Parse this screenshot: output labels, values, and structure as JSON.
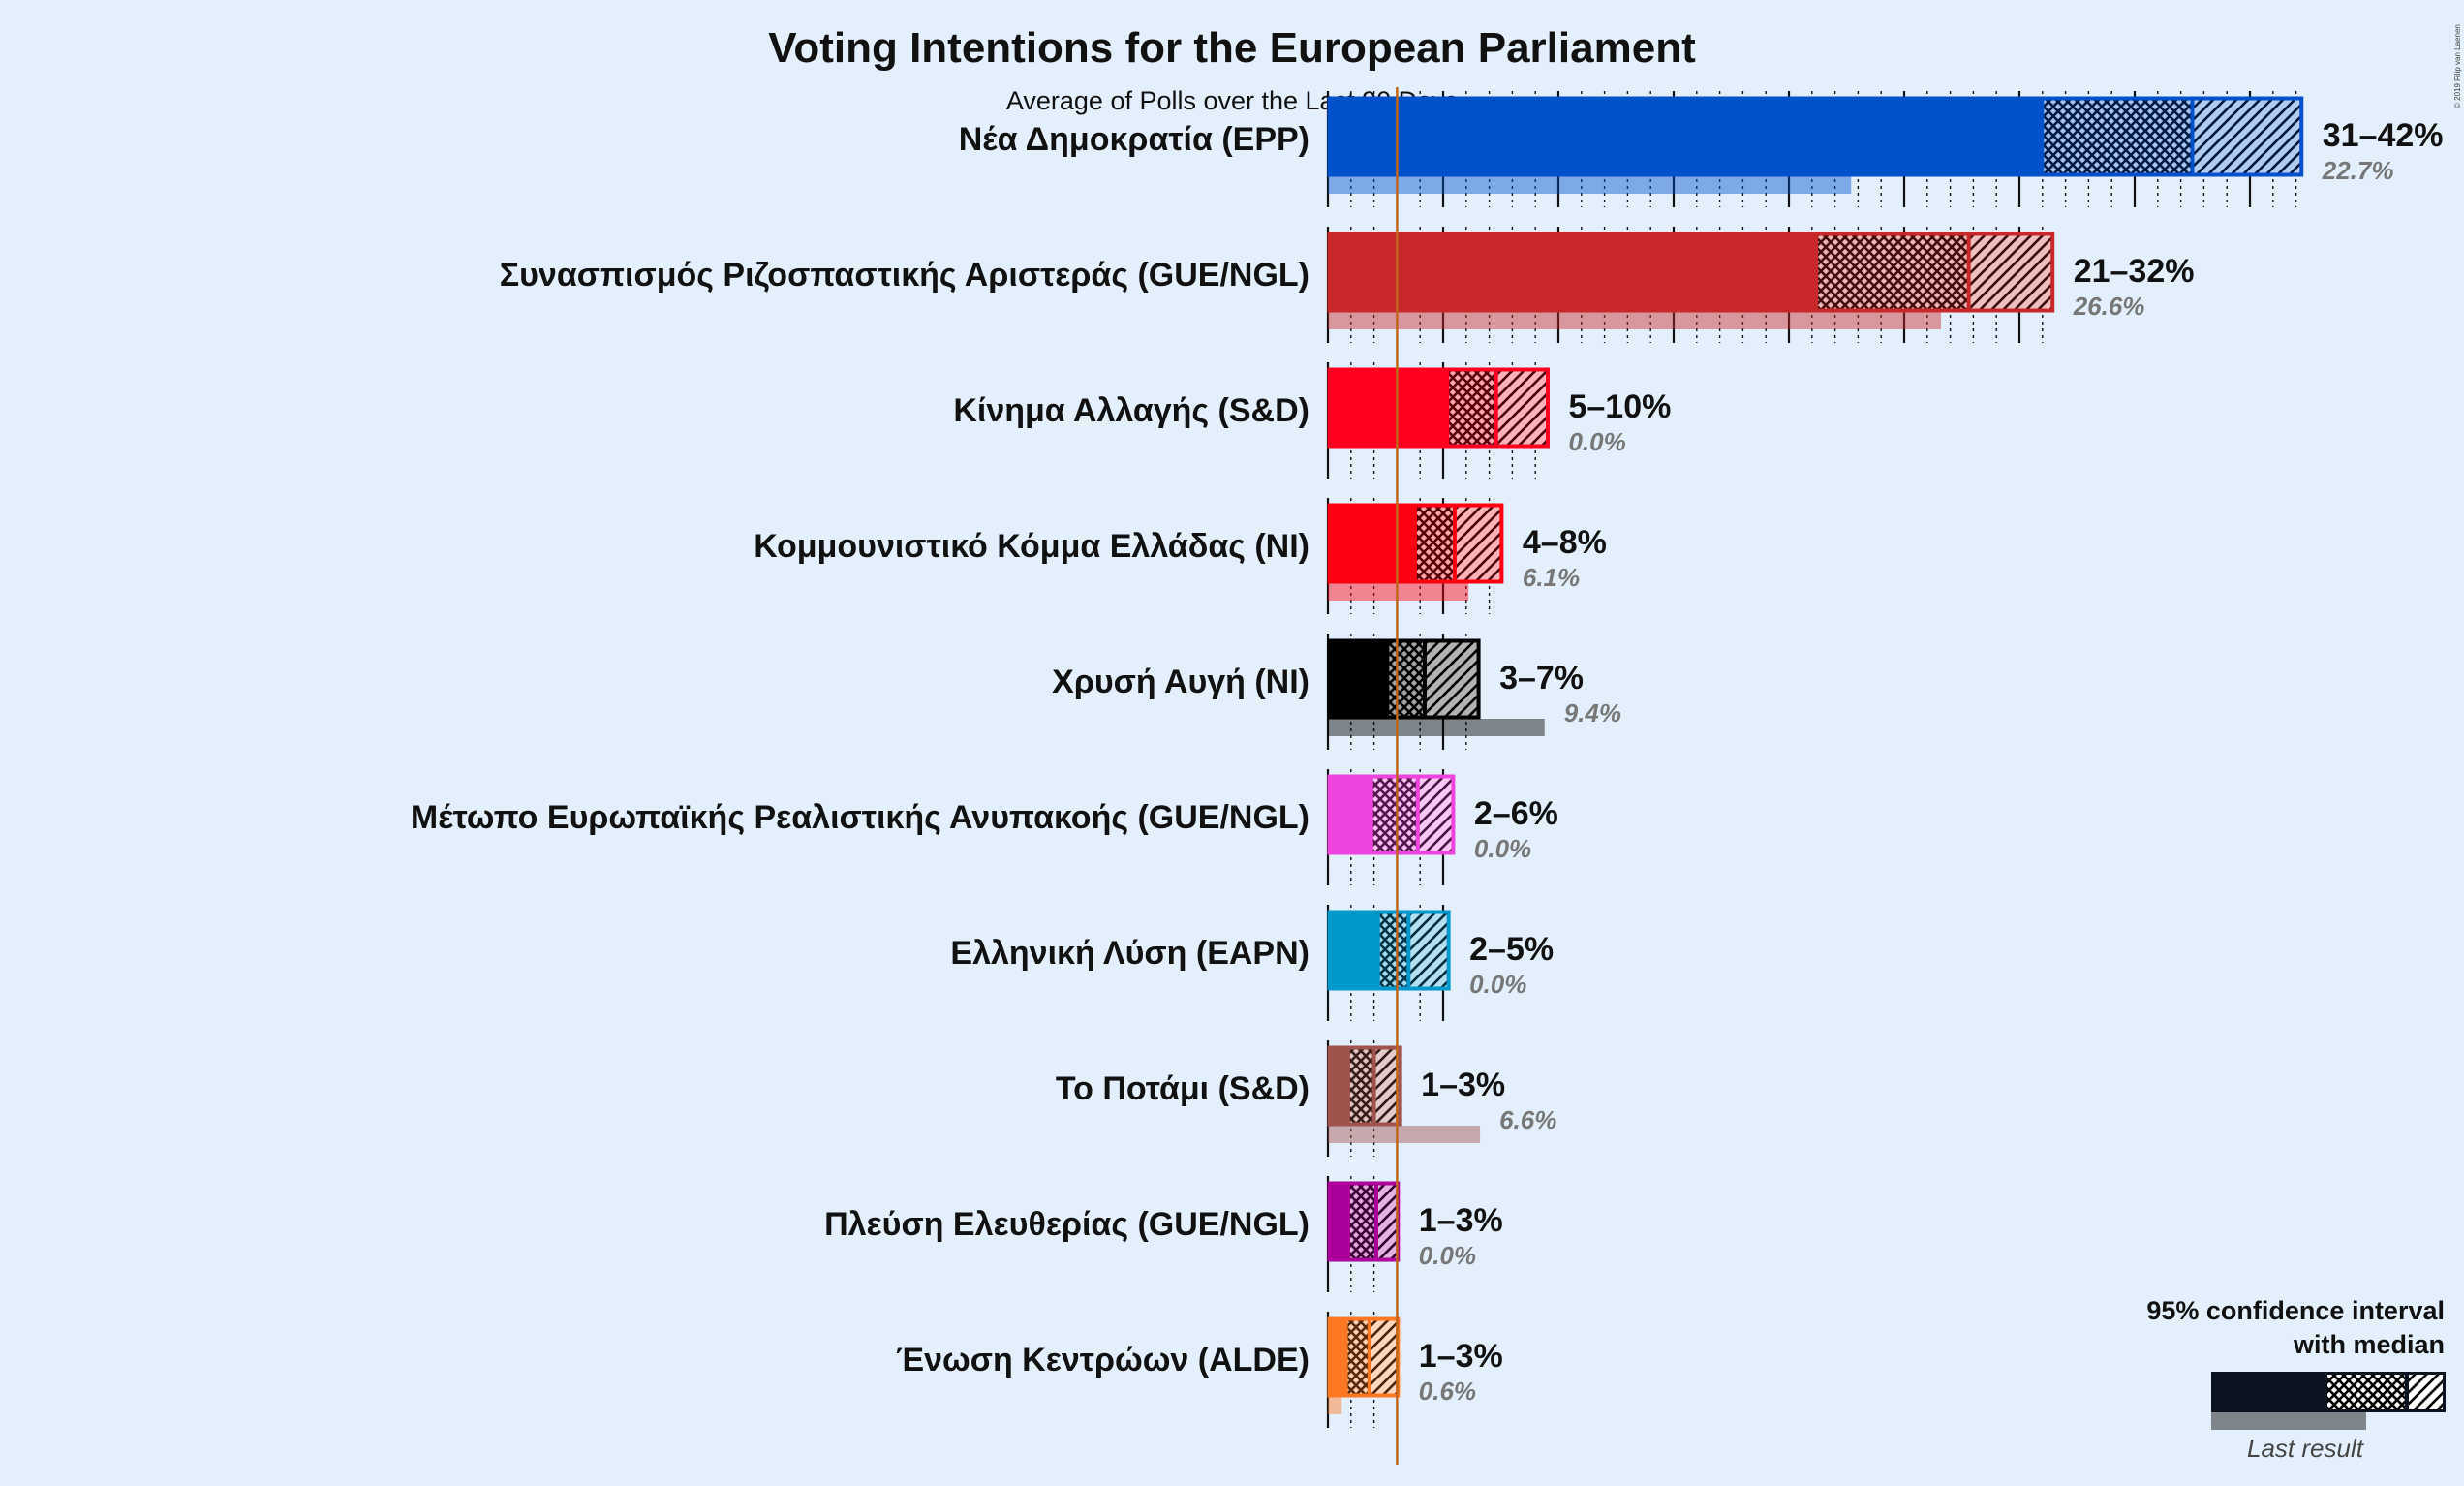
{
  "chart_data": {
    "type": "bar",
    "title": "Voting Intentions for the European Parliament",
    "subtitle": "Average of Polls over the Last 90 Days",
    "copyright": "© 2019 Filip van Laenen",
    "xlim": [
      0,
      43
    ],
    "threshold": 3,
    "legend": {
      "title_line1": "95% confidence interval",
      "title_line2": "with median",
      "last_result": "Last result",
      "placement": "bottom-right"
    },
    "parties": [
      {
        "name": "Νέα Δημοκρατία (EPP)",
        "color": "#0052cc",
        "ci_low": 31,
        "median": 37.5,
        "ci_high_80": 38,
        "ci_high": 42.3,
        "range_label": "31–42%",
        "last_result": 22.7,
        "last_label": "22.7%"
      },
      {
        "name": "Συνασπισμός Ριζοσπαστικής Αριστεράς (GUE/NGL)",
        "color": "#c9282a",
        "ci_low": 21.2,
        "median": 27.8,
        "ci_high_80": 27.8,
        "ci_high": 31.5,
        "range_label": "21–32%",
        "last_result": 26.6,
        "last_label": "26.6%"
      },
      {
        "name": "Κίνημα Αλλαγής (S&D)",
        "color": "#ff0020",
        "ci_low": 5.2,
        "median": 7.3,
        "ci_high_80": 7.3,
        "ci_high": 9.6,
        "range_label": "5–10%",
        "last_result": 0,
        "last_label": "0.0%"
      },
      {
        "name": "Κομμουνιστικό Κόμμα Ελλάδας (NI)",
        "color": "#ff0010",
        "ci_low": 3.8,
        "median": 5.5,
        "ci_high_80": 5.5,
        "ci_high": 7.6,
        "range_label": "4–8%",
        "last_result": 6.1,
        "last_label": "6.1%"
      },
      {
        "name": "Χρυσή Αυγή (NI)",
        "color": "#000000",
        "ci_low": 2.6,
        "median": 4.2,
        "ci_high_80": 4.2,
        "ci_high": 6.6,
        "range_label": "3–7%",
        "last_result": 9.4,
        "last_label": "9.4%"
      },
      {
        "name": "Μέτωπο Ευρωπαϊκής Ρεαλιστικής Ανυπακοής (GUE/NGL)",
        "color": "#ee44dd",
        "ci_low": 1.9,
        "median": 3.9,
        "ci_high_80": 3.9,
        "ci_high": 5.5,
        "range_label": "2–6%",
        "last_result": 0,
        "last_label": "0.0%"
      },
      {
        "name": "Ελληνική Λύση (EAPN)",
        "color": "#0099cc",
        "ci_low": 2.2,
        "median": 3.5,
        "ci_high_80": 3.5,
        "ci_high": 5.3,
        "range_label": "2–5%",
        "last_result": 0,
        "last_label": "0.0%"
      },
      {
        "name": "Το Ποτάμι (S&D)",
        "color": "#a0524d",
        "ci_low": 0.9,
        "median": 2.0,
        "ci_high_80": 2.0,
        "ci_high": 3.2,
        "range_label": "1–3%",
        "last_result": 6.6,
        "last_label": "6.6%"
      },
      {
        "name": "Πλεύση Ελευθερίας (GUE/NGL)",
        "color": "#aa0099",
        "ci_low": 0.9,
        "median": 2.1,
        "ci_high_80": 2.1,
        "ci_high": 3.1,
        "range_label": "1–3%",
        "last_result": 0,
        "last_label": "0.0%"
      },
      {
        "name": "Ένωση Κεντρώων (ALDE)",
        "color": "#ff7722",
        "ci_low": 0.8,
        "median": 1.8,
        "ci_high_80": 1.8,
        "ci_high": 3.1,
        "range_label": "1–3%",
        "last_result": 0.6,
        "last_label": "0.6%"
      }
    ]
  }
}
